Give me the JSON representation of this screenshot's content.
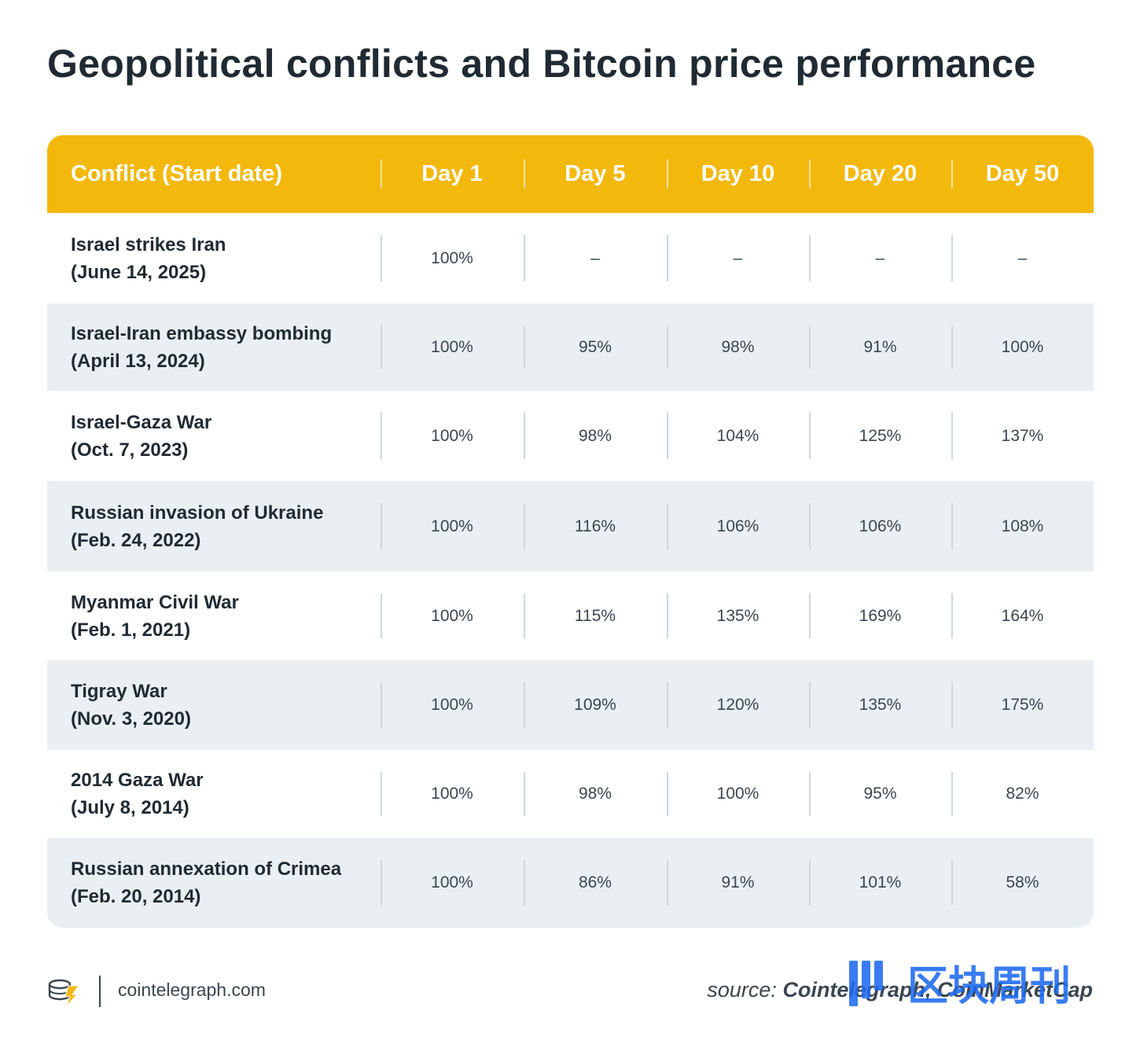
{
  "title": "Geopolitical conflicts and Bitcoin price performance",
  "chart_data": {
    "type": "table",
    "title": "Geopolitical conflicts and Bitcoin price performance",
    "columns": [
      "Conflict (Start date)",
      "Day 1",
      "Day 5",
      "Day 10",
      "Day 20",
      "Day 50"
    ],
    "rows": [
      {
        "name": "Israel strikes Iran",
        "date": "(June 14, 2025)",
        "values": [
          "100%",
          "–",
          "–",
          "–",
          "–"
        ]
      },
      {
        "name": "Israel-Iran embassy bombing",
        "date": "(April 13, 2024)",
        "values": [
          "100%",
          "95%",
          "98%",
          "91%",
          "100%"
        ]
      },
      {
        "name": "Israel-Gaza War",
        "date": "(Oct. 7, 2023)",
        "values": [
          "100%",
          "98%",
          "104%",
          "125%",
          "137%"
        ]
      },
      {
        "name": "Russian invasion of Ukraine",
        "date": "(Feb. 24, 2022)",
        "values": [
          "100%",
          "116%",
          "106%",
          "106%",
          "108%"
        ]
      },
      {
        "name": "Myanmar Civil War",
        "date": "(Feb. 1, 2021)",
        "values": [
          "100%",
          "115%",
          "135%",
          "169%",
          "164%"
        ]
      },
      {
        "name": "Tigray War",
        "date": "(Nov. 3, 2020)",
        "values": [
          "100%",
          "109%",
          "120%",
          "135%",
          "175%"
        ]
      },
      {
        "name": "2014 Gaza War",
        "date": "(July 8, 2014)",
        "values": [
          "100%",
          "98%",
          "100%",
          "95%",
          "82%"
        ]
      },
      {
        "name": "Russian annexation of Crimea",
        "date": "(Feb. 20, 2014)",
        "values": [
          "100%",
          "86%",
          "91%",
          "101%",
          "58%"
        ]
      }
    ]
  },
  "footer": {
    "site": "cointelegraph.com",
    "source_label": "source:",
    "source_value": "Cointelegraph, CoinMarketCap"
  },
  "colors": {
    "header_bg": "#f3b80c",
    "alt_row_bg": "#eaeff3",
    "text_dark": "#1f2a33",
    "watermark_blue": "#1e6bf0"
  },
  "watermark": {
    "text": "区块周刊"
  }
}
